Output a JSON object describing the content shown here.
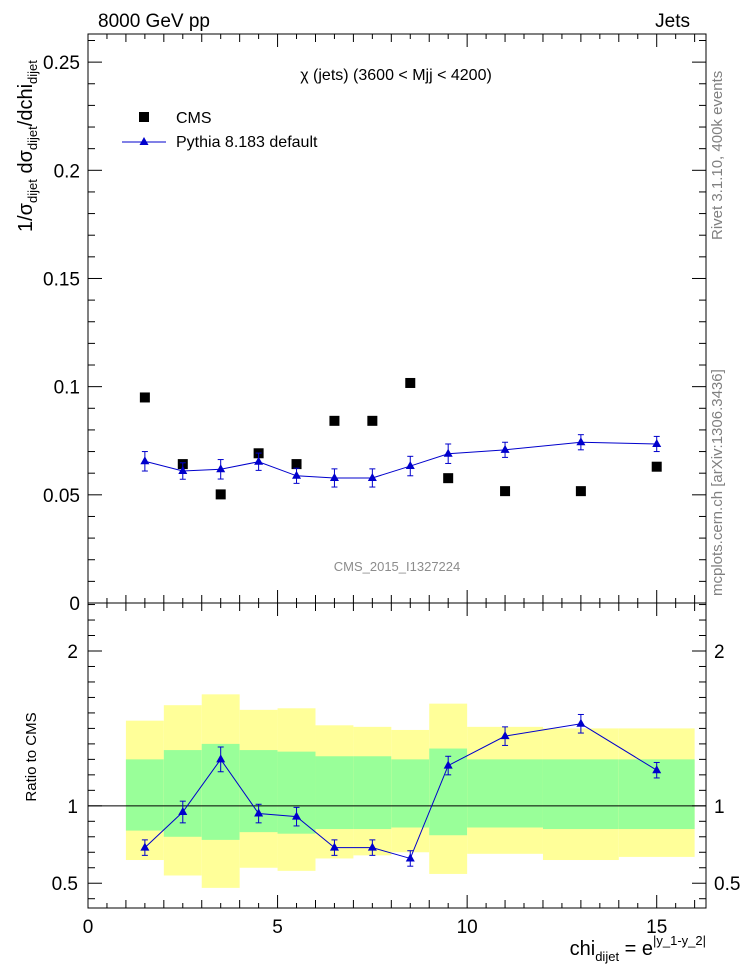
{
  "header": {
    "left": "8000 GeV pp",
    "right": "Jets"
  },
  "side_labels": {
    "rivet": "Rivet 3.1.10,  400k events",
    "mcplots": "mcplots.cern.ch [arXiv:1306.3436]"
  },
  "watermark": "CMS_2015_I1327224",
  "colors": {
    "cms": "#000000",
    "pythia": "#0000cc",
    "band_green": "#99ff99",
    "band_yellow": "#ffff99"
  },
  "chart_data": [
    {
      "type": "scatter",
      "panel": "main",
      "title": "χ (jets) (3600 < Mjj < 4200)",
      "ylabel": {
        "text": "1/σ",
        "sub1": "dijet",
        "mid": " dσ",
        "sub2": "dijet",
        "mid2": "/dchi",
        "sub3": "dijet"
      },
      "xlim": [
        0,
        16.3
      ],
      "ylim": [
        0,
        0.263
      ],
      "y_ticks": [
        0,
        0.05,
        0.1,
        0.15,
        0.2,
        0.25
      ],
      "y_tick_labels": [
        "0",
        "0.05",
        "0.1",
        "0.15",
        "0.2",
        "0.25"
      ],
      "legend_position": "top-left",
      "series": [
        {
          "name": "CMS",
          "marker": "square",
          "x": [
            1.5,
            2.5,
            3.5,
            4.5,
            5.5,
            6.5,
            7.5,
            8.5,
            9.5,
            11,
            13,
            15
          ],
          "y": [
            0.095,
            0.0642,
            0.0502,
            0.0692,
            0.0642,
            0.0842,
            0.0842,
            0.1017,
            0.0577,
            0.0517,
            0.0517,
            0.063
          ]
        },
        {
          "name": "Pythia 8.183 default",
          "marker": "triangle",
          "x": [
            1.5,
            2.5,
            3.5,
            4.5,
            5.5,
            6.5,
            7.5,
            8.5,
            9.5,
            11,
            13,
            15
          ],
          "y": [
            0.0655,
            0.061,
            0.0618,
            0.0653,
            0.0588,
            0.0578,
            0.0578,
            0.0633,
            0.069,
            0.0708,
            0.0743,
            0.0735
          ],
          "yerr": [
            0.0045,
            0.0038,
            0.0045,
            0.004,
            0.0035,
            0.0042,
            0.0042,
            0.0045,
            0.0045,
            0.0035,
            0.0035,
            0.0035
          ]
        }
      ]
    },
    {
      "type": "scatter",
      "panel": "ratio",
      "xlabel": {
        "text": "chi",
        "sub": "dijet",
        "eq": " = e",
        "sup": "|y_1-y_2|"
      },
      "ylabel": "Ratio to CMS",
      "xlim": [
        0,
        16.3
      ],
      "ylim": [
        0.34,
        2.31
      ],
      "x_ticks": [
        0,
        5,
        10,
        15
      ],
      "x_tick_labels": [
        "0",
        "5",
        "10",
        "15"
      ],
      "y_ticks": [
        0.5,
        1,
        2
      ],
      "y_tick_labels": [
        "0.5",
        "1",
        "2"
      ],
      "reference_line": 1,
      "bands": {
        "edges": [
          1,
          2,
          3,
          4,
          5,
          6,
          7,
          8,
          9,
          10,
          12,
          14,
          16
        ],
        "green": [
          [
            0.84,
            1.3
          ],
          [
            0.8,
            1.36
          ],
          [
            0.78,
            1.4
          ],
          [
            0.83,
            1.36
          ],
          [
            0.82,
            1.35
          ],
          [
            0.85,
            1.32
          ],
          [
            0.85,
            1.32
          ],
          [
            0.86,
            1.3
          ],
          [
            0.81,
            1.37
          ],
          [
            0.86,
            1.3
          ],
          [
            0.85,
            1.3
          ],
          [
            0.85,
            1.3
          ]
        ],
        "yellow": [
          [
            0.65,
            1.55
          ],
          [
            0.55,
            1.65
          ],
          [
            0.47,
            1.72
          ],
          [
            0.6,
            1.62
          ],
          [
            0.58,
            1.63
          ],
          [
            0.66,
            1.52
          ],
          [
            0.68,
            1.51
          ],
          [
            0.7,
            1.49
          ],
          [
            0.56,
            1.66
          ],
          [
            0.69,
            1.51
          ],
          [
            0.65,
            1.5
          ],
          [
            0.67,
            1.5
          ]
        ]
      },
      "series": [
        {
          "name": "Pythia 8.183 default",
          "marker": "triangle",
          "x": [
            1.5,
            2.5,
            3.5,
            4.5,
            5.5,
            6.5,
            7.5,
            8.5,
            9.5,
            11,
            13,
            15
          ],
          "y": [
            0.73,
            0.96,
            1.3,
            0.95,
            0.93,
            0.73,
            0.73,
            0.66,
            1.26,
            1.45,
            1.53,
            1.23
          ],
          "yerr": [
            0.05,
            0.07,
            0.08,
            0.06,
            0.06,
            0.05,
            0.05,
            0.05,
            0.06,
            0.06,
            0.06,
            0.05
          ]
        }
      ]
    }
  ]
}
